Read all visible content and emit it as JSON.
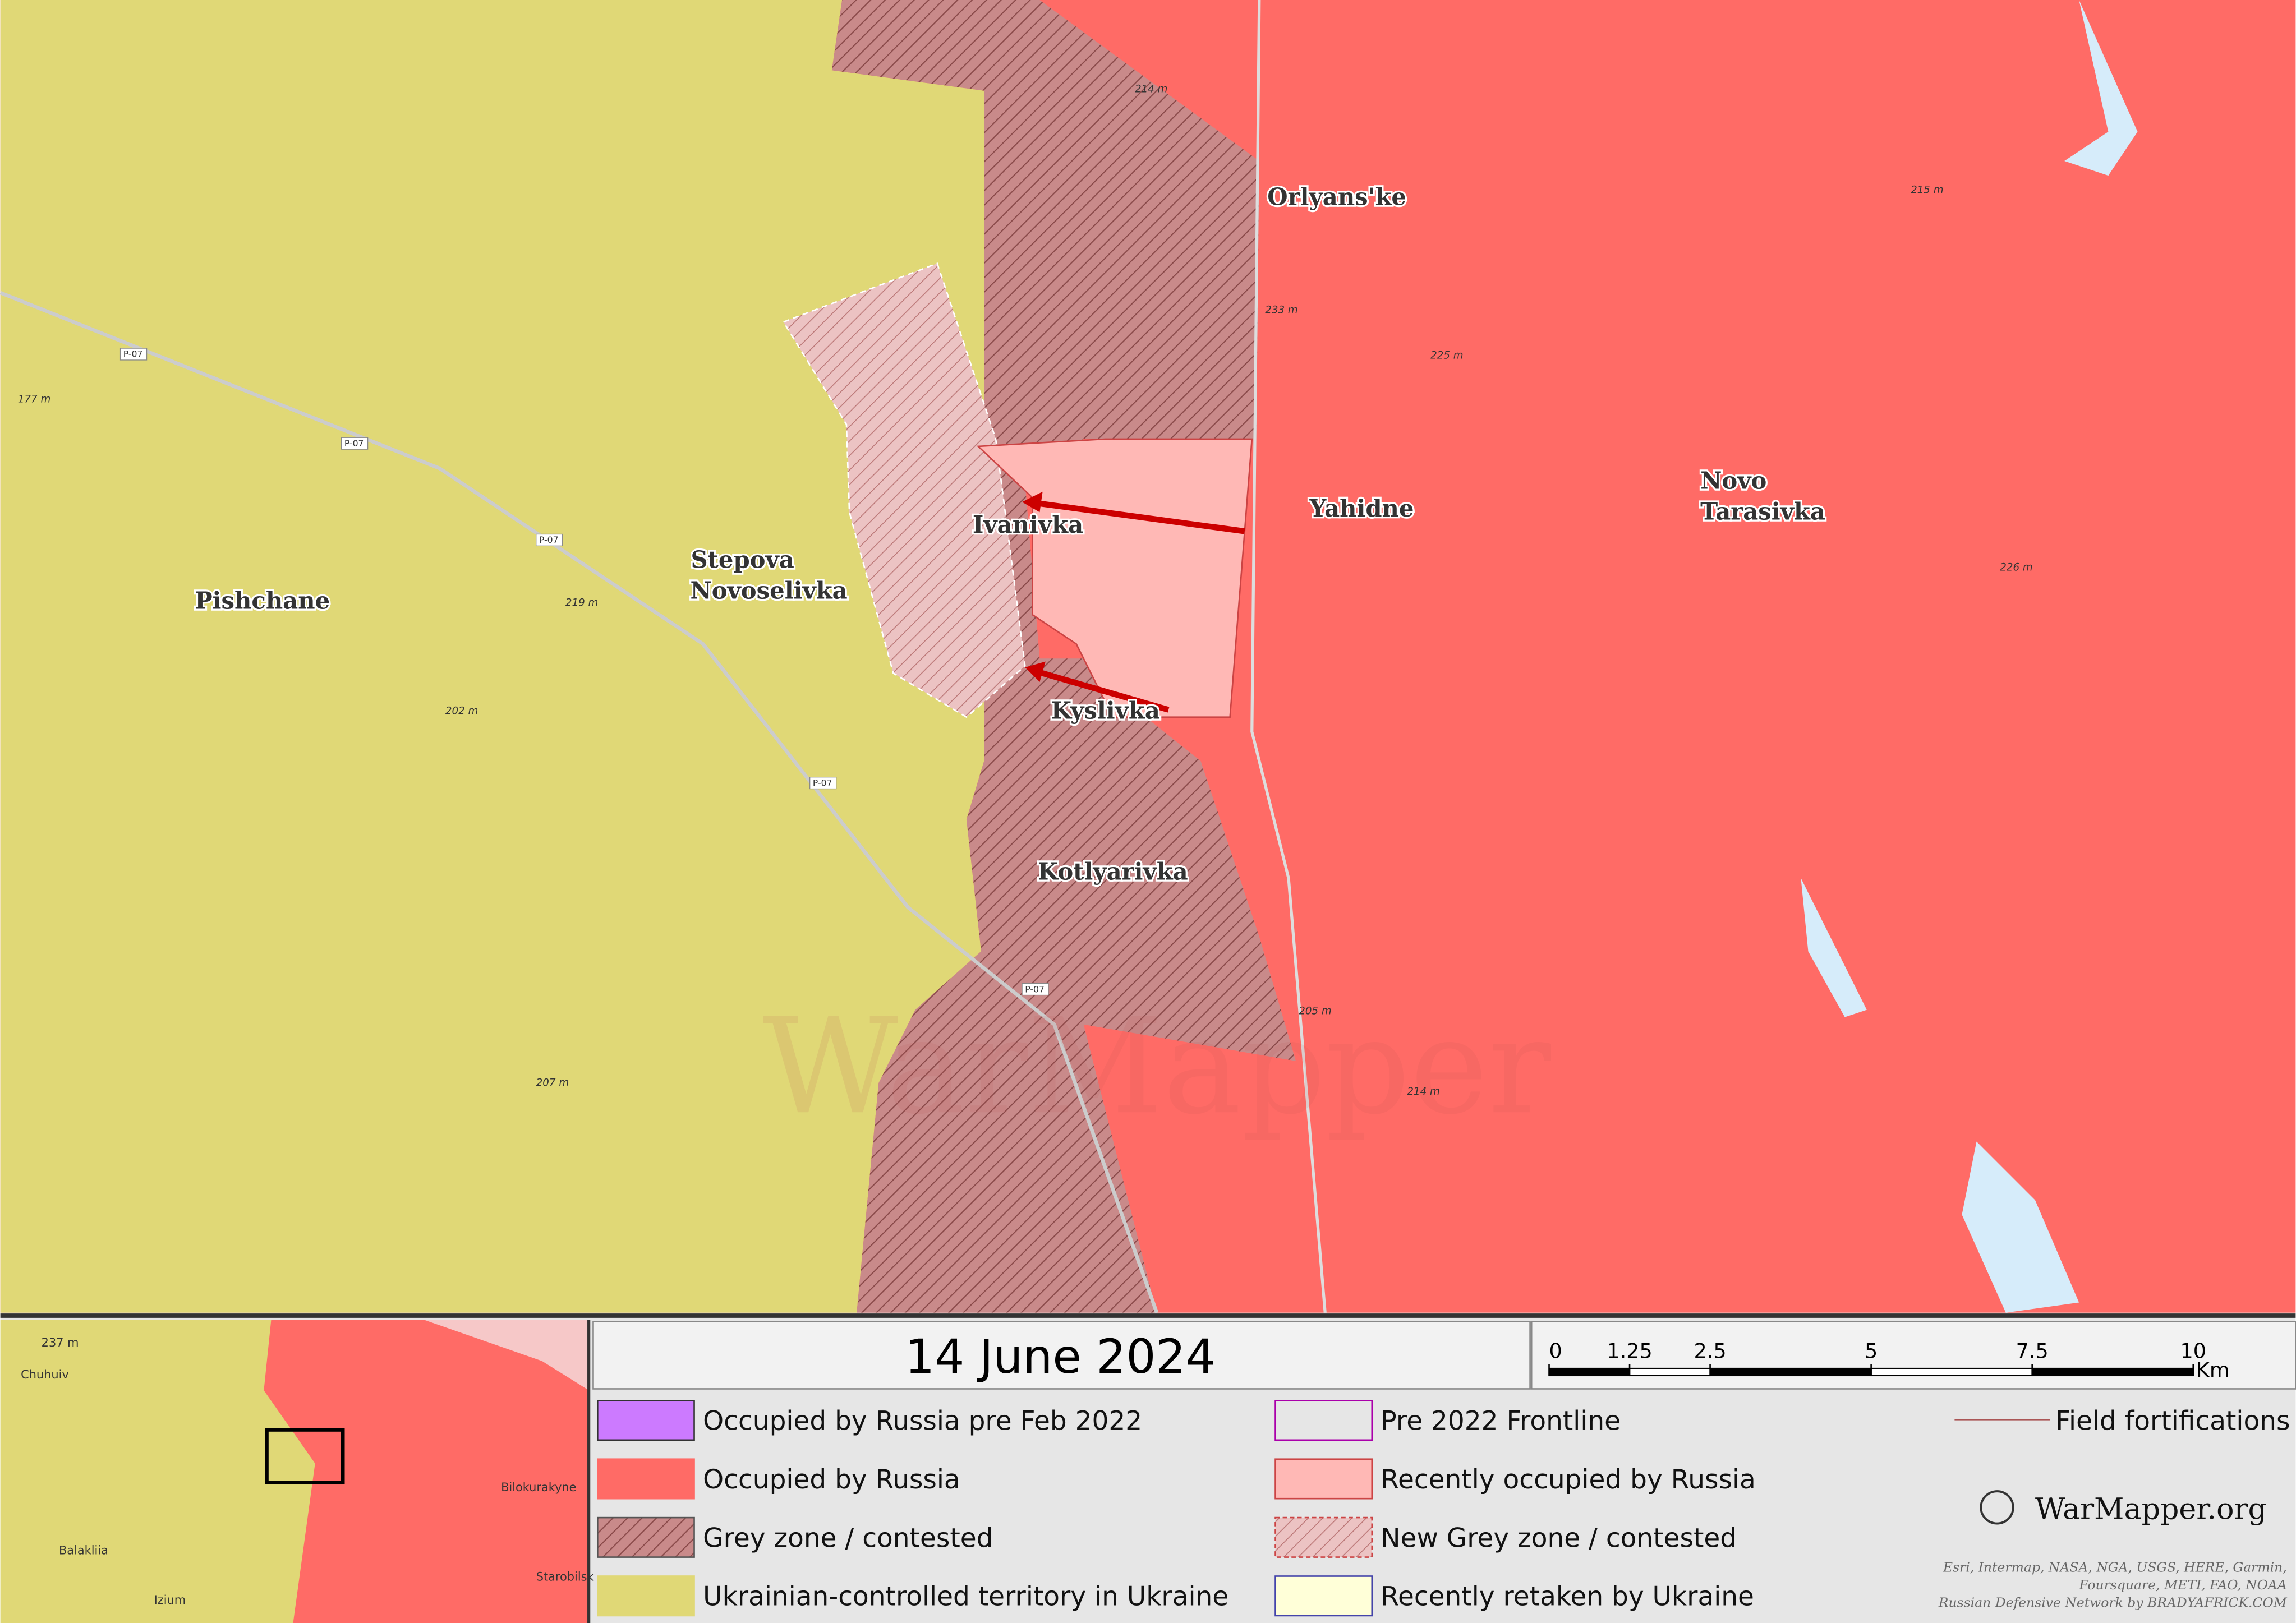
{
  "map": {
    "places": [
      {
        "label": "Orlyans'ke"
      },
      {
        "label": "Yahidne"
      },
      {
        "label": "Novo"
      },
      {
        "label": "Tarasivka"
      },
      {
        "label": "Ivanivka"
      },
      {
        "label": "Stepova"
      },
      {
        "label": "Novoselivka"
      },
      {
        "label": "Pishchane"
      },
      {
        "label": "Kyslivka"
      },
      {
        "label": "Kotlyarivka"
      }
    ],
    "elevations": [
      "214 m",
      "215 m",
      "233 m",
      "225 m",
      "177 m",
      "219 m",
      "202 m",
      "207 m",
      "205 m",
      "214 m",
      "226 m"
    ],
    "roads": [
      "P-07",
      "P-07",
      "P-07",
      "P-07",
      "P-07"
    ],
    "watermark": "WarMapper"
  },
  "legend": {
    "date": "14 June 2024",
    "scale": {
      "ticks": [
        0,
        1.25,
        2.5,
        5,
        7.5,
        10
      ],
      "unit": "Km"
    },
    "items": [
      "Occupied by Russia pre Feb 2022",
      "Occupied by Russia",
      "Grey zone / contested",
      "Ukrainian-controlled territory in Ukraine",
      "Pre 2022 Frontline",
      "Recently occupied by Russia",
      "New Grey zone / contested",
      "Recently retaken by Ukraine",
      "Field fortifications"
    ],
    "logo": "WarMapper.org",
    "credits": [
      "Esri, Intermap, NASA, NGA, USGS, HERE, Garmin,",
      "Foursquare, METI, FAO, NOAA",
      "Russian Defensive Network by BRADYAFRICK.COM"
    ]
  },
  "inset": {
    "labels": [
      "237 m",
      "Chuhuiv",
      "Balakliia",
      "Izium",
      "Bilokurakyne",
      "Starobilsk"
    ]
  }
}
